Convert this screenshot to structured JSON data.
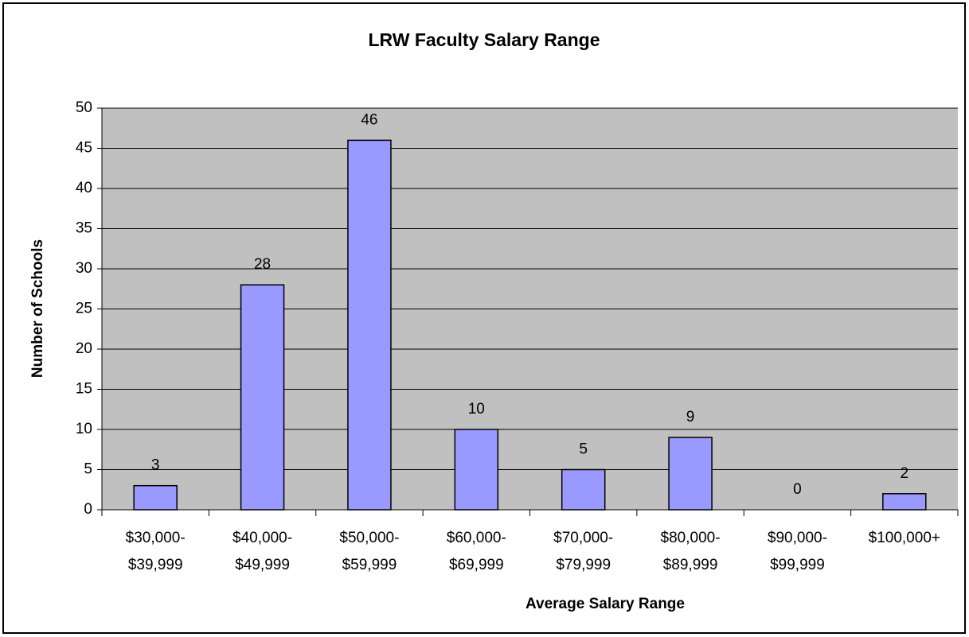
{
  "chart_data": {
    "type": "bar",
    "title": "LRW Faculty Salary Range",
    "x_label": "Average Salary Range",
    "y_label": "Number of Schools",
    "categories": [
      [
        "$30,000-",
        "$39,999"
      ],
      [
        "$40,000-",
        "$49,999"
      ],
      [
        "$50,000-",
        "$59,999"
      ],
      [
        "$60,000-",
        "$69,999"
      ],
      [
        "$70,000-",
        "$79,999"
      ],
      [
        "$80,000-",
        "$89,999"
      ],
      [
        "$90,000-",
        "$99,999"
      ],
      [
        "$100,000+"
      ]
    ],
    "values": [
      3,
      28,
      46,
      10,
      5,
      9,
      0,
      2
    ],
    "color": "#9999ff",
    "ylim": [
      0,
      50
    ],
    "yticks": [
      0,
      5,
      10,
      15,
      20,
      25,
      30,
      35,
      40,
      45,
      50
    ],
    "grid": true
  }
}
